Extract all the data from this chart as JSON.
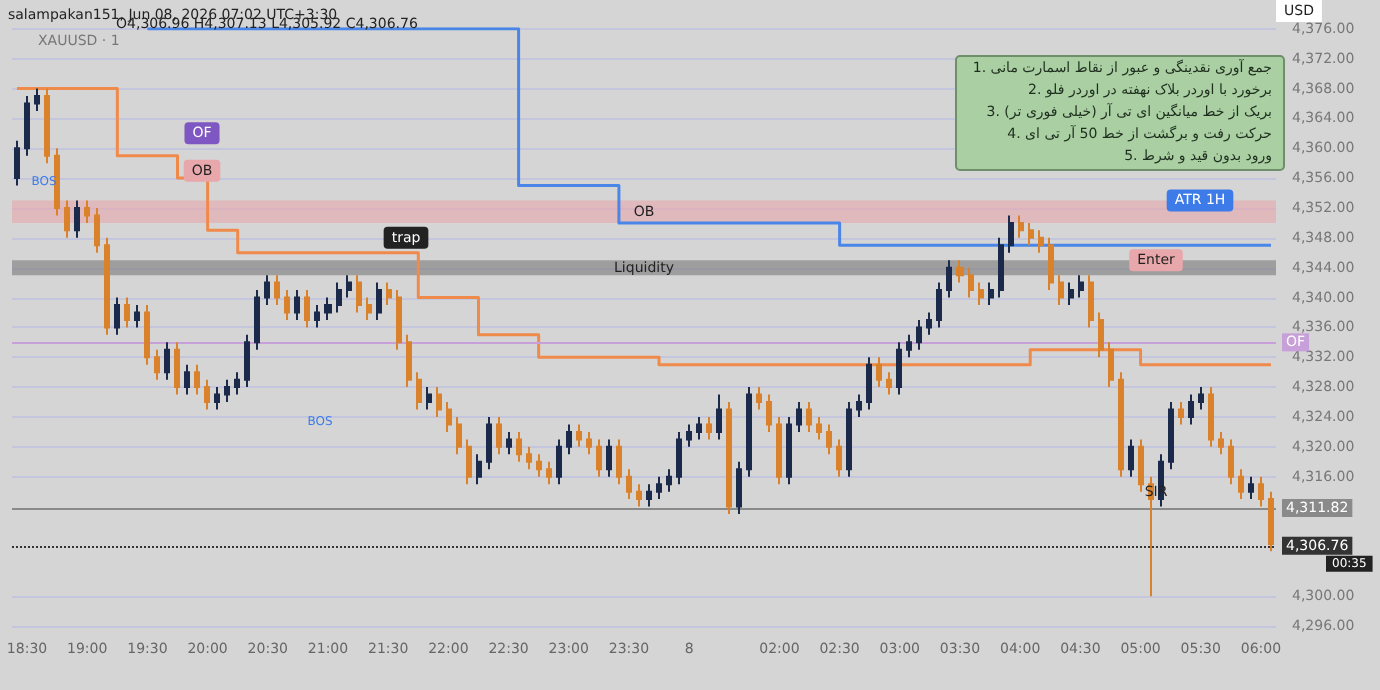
{
  "chart_data": {
    "type": "candlestick",
    "title": "XAUUSD · 1",
    "ylabel": "USD",
    "categories": [
      null,
      "18:30",
      null,
      null,
      null,
      null,
      null,
      "19:00",
      null,
      null,
      null,
      null,
      null,
      "19:30",
      null,
      null,
      null,
      null,
      null,
      "20:00",
      null,
      null,
      null,
      null,
      null,
      "20:30",
      null,
      null,
      null,
      null,
      null,
      "21:00",
      null,
      null,
      null,
      null,
      null,
      "21:30",
      null,
      null,
      null,
      null,
      null,
      "22:00",
      null,
      null,
      null,
      null,
      null,
      "22:30",
      null,
      null,
      null,
      null,
      null,
      "23:00",
      null,
      null,
      null,
      null,
      null,
      "23:30",
      null,
      null,
      null,
      null,
      null,
      "8",
      null,
      null,
      null,
      null,
      null,
      null,
      null,
      null,
      "02:00",
      null,
      null,
      null,
      null,
      null,
      "02:30",
      null,
      null,
      null,
      null,
      null,
      "03:00",
      null,
      null,
      null,
      null,
      null,
      "03:30",
      null,
      null,
      null,
      null,
      null,
      "04:00",
      null,
      null,
      null,
      null,
      null,
      "04:30",
      null,
      null,
      null,
      null,
      null,
      "05:00",
      null,
      null,
      null,
      null,
      null,
      "05:30",
      null,
      null,
      null,
      null,
      null,
      "06:00",
      null
    ],
    "ylim": [
      4296,
      4376
    ],
    "yticks": [
      {
        "value": 4296,
        "label": "4,296.00"
      },
      {
        "value": 4300,
        "label": "4,300.00"
      },
      {
        "value": 4316,
        "label": "4,316.00"
      },
      {
        "value": 4320,
        "label": "4,320.00"
      },
      {
        "value": 4324,
        "label": "4,324.00"
      },
      {
        "value": 4328,
        "label": "4,328.00"
      },
      {
        "value": 4332,
        "label": "4,332.00"
      },
      {
        "value": 4336,
        "label": "4,336.00"
      },
      {
        "value": 4340,
        "label": "4,340.00"
      },
      {
        "value": 4344,
        "label": "4,344.00"
      },
      {
        "value": 4348,
        "label": "4,348.00"
      },
      {
        "value": 4352,
        "label": "4,352.00"
      },
      {
        "value": 4356,
        "label": "4,356.00"
      },
      {
        "value": 4360,
        "label": "4,360.00"
      },
      {
        "value": 4364,
        "label": "4,364.00"
      },
      {
        "value": 4368,
        "label": "4,368.00"
      },
      {
        "value": 4372,
        "label": "4,372.00"
      },
      {
        "value": 4376,
        "label": "4,376.00"
      }
    ],
    "grid": "y",
    "series": [
      {
        "type": "step",
        "color": "#4a86e8",
        "values": [
          null,
          null,
          null,
          null,
          null,
          null,
          null,
          null,
          null,
          null,
          null,
          null,
          null,
          4376,
          4376,
          4376,
          4376,
          4376,
          4376,
          4376,
          4376,
          4376,
          4376,
          4376,
          4376,
          4376,
          4376,
          4376,
          4376,
          4376,
          4376,
          4376,
          4376,
          4376,
          4376,
          4376,
          4376,
          4376,
          4376,
          4376,
          4376,
          4376,
          4376,
          4376,
          4376,
          4376,
          4376,
          4376,
          4376,
          4376,
          4355,
          4355,
          4355,
          4355,
          4355,
          4355,
          4355,
          4355,
          4355,
          4355,
          4350,
          4350,
          4350,
          4350,
          4350,
          4350,
          4350,
          4350,
          4350,
          4350,
          4350,
          4350,
          4350,
          4350,
          4350,
          4350,
          4350,
          4350,
          4350,
          4350,
          4350,
          4350,
          4347,
          4347,
          4347,
          4347,
          4347,
          4347,
          4347,
          4347,
          4347,
          4347,
          4347,
          4347,
          4347,
          4347,
          4347,
          4347,
          4347,
          4347,
          4347,
          4347,
          4347,
          4347,
          4347,
          4347,
          4347,
          4347,
          4347,
          4347,
          4347,
          4347,
          4347,
          4347,
          4347,
          4347,
          4347,
          4347,
          4347,
          4347,
          4347,
          4347,
          4347,
          4347,
          4347,
          4347
        ]
      },
      {
        "type": "step",
        "color": "#f08a4b",
        "values": [
          4368,
          4368,
          4368,
          4368,
          4368,
          4368,
          4368,
          4368,
          4368,
          4368,
          4359,
          4359,
          4359,
          4359,
          4359,
          4359,
          4356,
          4356,
          4356,
          4349,
          4349,
          4349,
          4346,
          4346,
          4346,
          4346,
          4346,
          4346,
          4346,
          4346,
          4346,
          4346,
          4346,
          4346,
          4346,
          4346,
          4346,
          4346,
          4346,
          4346,
          4340,
          4340,
          4340,
          4340,
          4340,
          4340,
          4335,
          4335,
          4335,
          4335,
          4335,
          4335,
          4332,
          4332,
          4332,
          4332,
          4332,
          4332,
          4332,
          4332,
          4332,
          4332,
          4332,
          4332,
          4331,
          4331,
          4331,
          4331,
          4331,
          4331,
          4331,
          4331,
          4331,
          4331,
          4331,
          4331,
          4331,
          4331,
          4331,
          4331,
          4331,
          4331,
          4331,
          4331,
          4331,
          4331,
          4331,
          4331,
          4331,
          4331,
          4331,
          4331,
          4331,
          4331,
          4331,
          4331,
          4331,
          4331,
          4331,
          4331,
          4331,
          4333,
          4333,
          4333,
          4333,
          4333,
          4333,
          4333,
          4333,
          4333,
          4333,
          4333,
          4331,
          4331,
          4331,
          4331,
          4331,
          4331,
          4331,
          4331,
          4331,
          4331,
          4331,
          4331,
          4331,
          4331
        ]
      },
      {
        "ohlc": [
          [
            4356,
            4361,
            4355,
            4360
          ],
          [
            4360,
            4367,
            4359,
            4366
          ],
          [
            4366,
            4368,
            4365,
            4367
          ],
          [
            4367,
            4368,
            4358,
            4359
          ],
          [
            4359,
            4360,
            4351,
            4352
          ],
          [
            4352,
            4353,
            4348,
            4349
          ],
          [
            4349,
            4353,
            4348,
            4352
          ],
          [
            4352,
            4353,
            4350,
            4351
          ],
          [
            4351,
            4352,
            4346,
            4347
          ],
          [
            4347,
            4348,
            4335,
            4336
          ],
          [
            4336,
            4340,
            4335,
            4339
          ],
          [
            4339,
            4340,
            4336,
            4337
          ],
          [
            4337,
            4339,
            4336,
            4338
          ],
          [
            4338,
            4339,
            4331,
            4332
          ],
          [
            4332,
            4333,
            4329,
            4330
          ],
          [
            4330,
            4334,
            4329,
            4333
          ],
          [
            4333,
            4334,
            4327,
            4328
          ],
          [
            4328,
            4331,
            4327,
            4330
          ],
          [
            4330,
            4331,
            4327,
            4328
          ],
          [
            4328,
            4329,
            4325,
            4326
          ],
          [
            4326,
            4328,
            4325,
            4327
          ],
          [
            4327,
            4329,
            4326,
            4328
          ],
          [
            4328,
            4330,
            4327,
            4329
          ],
          [
            4329,
            4335,
            4328,
            4334
          ],
          [
            4334,
            4341,
            4333,
            4340
          ],
          [
            4340,
            4343,
            4339,
            4342
          ],
          [
            4342,
            4343,
            4339,
            4340
          ],
          [
            4340,
            4341,
            4337,
            4338
          ],
          [
            4338,
            4341,
            4337,
            4340
          ],
          [
            4340,
            4341,
            4336,
            4337
          ],
          [
            4337,
            4339,
            4336,
            4338
          ],
          [
            4338,
            4340,
            4337,
            4339
          ],
          [
            4339,
            4342,
            4338,
            4341
          ],
          [
            4341,
            4343,
            4340,
            4342
          ],
          [
            4342,
            4343,
            4338,
            4339
          ],
          [
            4339,
            4340,
            4337,
            4338
          ],
          [
            4338,
            4342,
            4337,
            4341
          ],
          [
            4341,
            4342,
            4339,
            4340
          ],
          [
            4340,
            4341,
            4333,
            4334
          ],
          [
            4334,
            4335,
            4328,
            4329
          ],
          [
            4329,
            4330,
            4325,
            4326
          ],
          [
            4326,
            4328,
            4325,
            4327
          ],
          [
            4327,
            4328,
            4324,
            4325
          ],
          [
            4325,
            4326,
            4322,
            4323
          ],
          [
            4323,
            4324,
            4319,
            4320
          ],
          [
            4320,
            4321,
            4315,
            4316
          ],
          [
            4316,
            4319,
            4315,
            4318
          ],
          [
            4318,
            4324,
            4317,
            4323
          ],
          [
            4323,
            4324,
            4319,
            4320
          ],
          [
            4320,
            4322,
            4319,
            4321
          ],
          [
            4321,
            4322,
            4318,
            4319
          ],
          [
            4319,
            4320,
            4317,
            4318
          ],
          [
            4318,
            4319,
            4316,
            4317
          ],
          [
            4317,
            4318,
            4315,
            4316
          ],
          [
            4316,
            4321,
            4315,
            4320
          ],
          [
            4320,
            4323,
            4319,
            4322
          ],
          [
            4322,
            4323,
            4320,
            4321
          ],
          [
            4321,
            4322,
            4319,
            4320
          ],
          [
            4320,
            4321,
            4316,
            4317
          ],
          [
            4317,
            4321,
            4316,
            4320
          ],
          [
            4320,
            4321,
            4315,
            4316
          ],
          [
            4316,
            4317,
            4313,
            4314
          ],
          [
            4314,
            4315,
            4312,
            4313
          ],
          [
            4313,
            4315,
            4312,
            4314
          ],
          [
            4314,
            4316,
            4313,
            4315
          ],
          [
            4315,
            4317,
            4314,
            4316
          ],
          [
            4316,
            4322,
            4315,
            4321
          ],
          [
            4321,
            4323,
            4320,
            4322
          ],
          [
            4322,
            4324,
            4321,
            4323
          ],
          [
            4323,
            4324,
            4321,
            4322
          ],
          [
            4322,
            4327,
            4321,
            4325
          ],
          [
            4325,
            4326,
            4311,
            4312
          ],
          [
            4312,
            4318,
            4311,
            4317
          ],
          [
            4317,
            4328,
            4316,
            4327
          ],
          [
            4327,
            4328,
            4325,
            4326
          ],
          [
            4326,
            4327,
            4322,
            4323
          ],
          [
            4323,
            4324,
            4315,
            4316
          ],
          [
            4316,
            4324,
            4315,
            4323
          ],
          [
            4323,
            4326,
            4322,
            4325
          ],
          [
            4325,
            4326,
            4322,
            4323
          ],
          [
            4323,
            4324,
            4321,
            4322
          ],
          [
            4322,
            4323,
            4319,
            4320
          ],
          [
            4320,
            4321,
            4316,
            4317
          ],
          [
            4317,
            4326,
            4316,
            4325
          ],
          [
            4325,
            4327,
            4324,
            4326
          ],
          [
            4326,
            4332,
            4325,
            4331
          ],
          [
            4331,
            4332,
            4328,
            4329
          ],
          [
            4329,
            4330,
            4327,
            4328
          ],
          [
            4328,
            4334,
            4327,
            4333
          ],
          [
            4333,
            4335,
            4332,
            4334
          ],
          [
            4334,
            4337,
            4333,
            4336
          ],
          [
            4336,
            4338,
            4335,
            4337
          ],
          [
            4337,
            4342,
            4336,
            4341
          ],
          [
            4341,
            4345,
            4340,
            4344
          ],
          [
            4344,
            4345,
            4342,
            4343
          ],
          [
            4343,
            4344,
            4340,
            4341
          ],
          [
            4341,
            4342,
            4339,
            4340
          ],
          [
            4340,
            4342,
            4339,
            4341
          ],
          [
            4341,
            4348,
            4340,
            4347
          ],
          [
            4347,
            4351,
            4346,
            4350
          ],
          [
            4350,
            4351,
            4348,
            4349
          ],
          [
            4349,
            4350,
            4347,
            4348
          ],
          [
            4348,
            4349,
            4346,
            4347
          ],
          [
            4347,
            4348,
            4341,
            4342
          ],
          [
            4342,
            4343,
            4339,
            4340
          ],
          [
            4340,
            4342,
            4339,
            4341
          ],
          [
            4341,
            4343,
            4340,
            4342
          ],
          [
            4342,
            4343,
            4336,
            4337
          ],
          [
            4337,
            4338,
            4332,
            4333
          ],
          [
            4333,
            4334,
            4328,
            4329
          ],
          [
            4329,
            4330,
            4316,
            4317
          ],
          [
            4317,
            4321,
            4316,
            4320
          ],
          [
            4320,
            4321,
            4314,
            4315
          ],
          [
            4315,
            4316,
            4300,
            4313
          ],
          [
            4313,
            4319,
            4312,
            4318
          ],
          [
            4318,
            4326,
            4317,
            4325
          ],
          [
            4325,
            4326,
            4323,
            4324
          ],
          [
            4324,
            4327,
            4323,
            4326
          ],
          [
            4326,
            4328,
            4325,
            4327
          ],
          [
            4327,
            4328,
            4320,
            4321
          ],
          [
            4321,
            4322,
            4319,
            4320
          ],
          [
            4320,
            4321,
            4315,
            4316
          ],
          [
            4316,
            4317,
            4313,
            4314
          ],
          [
            4314,
            4316,
            4313,
            4315
          ],
          [
            4315,
            4316,
            4312,
            4313
          ],
          [
            4313,
            4314,
            4306,
            4307
          ]
        ],
        "colors": [
          "#1b2a4a",
          "#1b2a4a",
          "#1b2a4a",
          "#d9822b",
          "#d9822b",
          "#d9822b",
          "#1b2a4a",
          "#d9822b",
          "#d9822b",
          "#d9822b",
          "#1b2a4a",
          "#d9822b",
          "#1b2a4a",
          "#d9822b",
          "#d9822b",
          "#1b2a4a",
          "#d9822b",
          "#1b2a4a",
          "#d9822b",
          "#d9822b",
          "#1b2a4a",
          "#1b2a4a",
          "#1b2a4a",
          "#1b2a4a",
          "#1b2a4a",
          "#1b2a4a",
          "#d9822b",
          "#d9822b",
          "#1b2a4a",
          "#d9822b",
          "#1b2a4a",
          "#1b2a4a",
          "#1b2a4a",
          "#1b2a4a",
          "#d9822b",
          "#d9822b",
          "#1b2a4a",
          "#d9822b",
          "#d9822b",
          "#d9822b",
          "#d9822b",
          "#1b2a4a",
          "#d9822b",
          "#d9822b",
          "#d9822b",
          "#d9822b",
          "#1b2a4a",
          "#1b2a4a",
          "#d9822b",
          "#1b2a4a",
          "#d9822b",
          "#d9822b",
          "#d9822b",
          "#d9822b",
          "#1b2a4a",
          "#1b2a4a",
          "#d9822b",
          "#d9822b",
          "#d9822b",
          "#1b2a4a",
          "#d9822b",
          "#d9822b",
          "#d9822b",
          "#1b2a4a",
          "#1b2a4a",
          "#1b2a4a",
          "#1b2a4a",
          "#1b2a4a",
          "#1b2a4a",
          "#d9822b",
          "#1b2a4a",
          "#d9822b",
          "#1b2a4a",
          "#1b2a4a",
          "#d9822b",
          "#d9822b",
          "#d9822b",
          "#1b2a4a",
          "#1b2a4a",
          "#d9822b",
          "#d9822b",
          "#d9822b",
          "#d9822b",
          "#1b2a4a",
          "#1b2a4a",
          "#1b2a4a",
          "#d9822b",
          "#d9822b",
          "#1b2a4a",
          "#1b2a4a",
          "#1b2a4a",
          "#1b2a4a",
          "#1b2a4a",
          "#1b2a4a",
          "#d9822b",
          "#d9822b",
          "#d9822b",
          "#1b2a4a",
          "#1b2a4a",
          "#1b2a4a",
          "#d9822b",
          "#d9822b",
          "#d9822b",
          "#d9822b",
          "#d9822b",
          "#1b2a4a",
          "#1b2a4a",
          "#d9822b",
          "#d9822b",
          "#d9822b",
          "#d9822b",
          "#1b2a4a",
          "#d9822b",
          "#d9822b",
          "#1b2a4a",
          "#1b2a4a",
          "#d9822b",
          "#1b2a4a",
          "#1b2a4a",
          "#d9822b",
          "#d9822b",
          "#d9822b",
          "#d9822b",
          "#1b2a4a",
          "#d9822b",
          "#d9822b"
        ]
      }
    ],
    "bands": [
      {
        "axis": "y",
        "from": 4350,
        "to": 4353,
        "label": "OB",
        "color": "#e8a7ab"
      },
      {
        "axis": "y",
        "from": 4343,
        "to": 4345,
        "label": "Liquidity",
        "color": "#7a7a7a"
      }
    ],
    "ref_lines": [
      {
        "axis": "y",
        "value": 4334,
        "label": "OF",
        "color": "#c79fd9"
      },
      {
        "axis": "y",
        "value": 4311.82,
        "label": "4,311.82",
        "color": "#8a8a8a"
      },
      {
        "axis": "y",
        "value": 4306.76,
        "label": "4,306.76",
        "color": "#333333",
        "line_style": "dotted"
      }
    ],
    "annotations": [
      "salampakan151, Jun 08, 2026 07:02 UTC+3:30",
      "O4,306.96 H4,307.13 L4,305.92 C4,306.76",
      {
        "text": "OF",
        "y": 4362
      },
      {
        "text": "OB",
        "y": 4357
      },
      "BOS",
      {
        "text": "trap",
        "y": 4348
      },
      "BOS",
      "جمع آوری نقدینگی و عبور از نقاط اسمارت مانی .1",
      "برخورد با اوردر بلاک نهفته در اوردر فلو .2",
      "بریک از خط میانگین ای تی آر (خیلی فوری تر) .3",
      "حرکت رفت و برگشت از خط 50 آر تی ای .4",
      "ورود بدون قید و شرط .5",
      {
        "text": "ATR 1H",
        "y": 4353
      },
      {
        "text": "Enter",
        "y": 4345
      },
      {
        "text": "SIR",
        "y": 4314
      },
      "00:35"
    ]
  }
}
